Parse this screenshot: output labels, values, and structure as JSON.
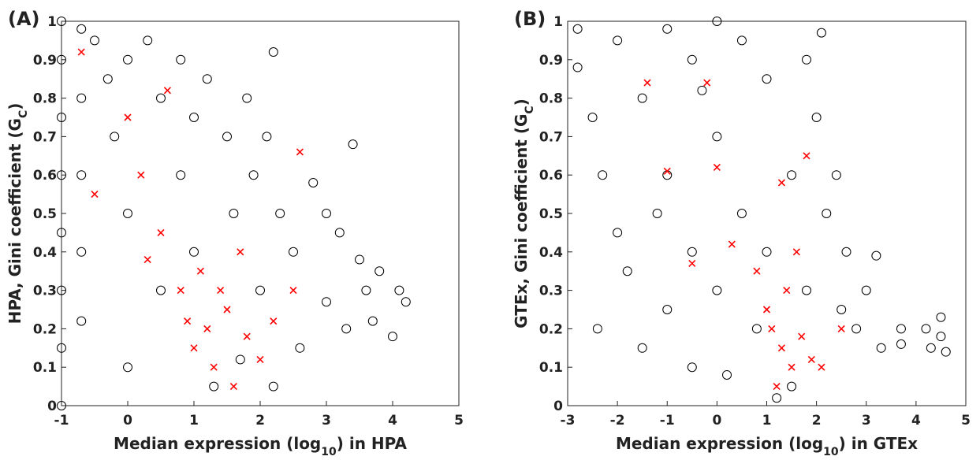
{
  "chart_data": [
    {
      "type": "scatter",
      "panel_label": "(A)",
      "xlabel": [
        "Median expression (log",
        "10",
        ") in HPA"
      ],
      "ylabel": [
        "HPA, Gini coefficient (G",
        "C",
        ")"
      ],
      "xlim": [
        -1,
        5
      ],
      "ylim": [
        0,
        1
      ],
      "xticks": [
        -1,
        0,
        1,
        2,
        3,
        4,
        5
      ],
      "yticks": [
        0,
        0.1,
        0.2,
        0.3,
        0.4,
        0.5,
        0.6,
        0.7,
        0.8,
        0.9,
        1
      ],
      "series": [
        {
          "color": "#000000",
          "marker": "circle",
          "x": [
            -1,
            -1,
            -1,
            -1,
            -1,
            -1,
            -1,
            -1,
            -0.7,
            -0.7,
            -0.7,
            -0.7,
            -0.7,
            -0.5,
            -0.3,
            -0.2,
            0,
            0,
            0,
            0.3,
            0.5,
            0.5,
            0.8,
            0.8,
            1,
            1,
            1.2,
            1.3,
            1.5,
            1.6,
            1.8,
            1.9,
            2,
            2.1,
            2.2,
            2.3,
            2.5,
            2.6,
            2.8,
            3,
            3,
            3.2,
            3.3,
            3.4,
            3.5,
            3.6,
            3.7,
            3.8,
            4,
            4.1,
            4.2,
            2.2,
            1.7
          ],
          "values": [
            1,
            0.9,
            0.75,
            0.6,
            0.45,
            0.3,
            0.15,
            0,
            0.98,
            0.8,
            0.6,
            0.4,
            0.22,
            0.95,
            0.85,
            0.7,
            0.9,
            0.5,
            0.1,
            0.95,
            0.8,
            0.3,
            0.9,
            0.6,
            0.75,
            0.4,
            0.85,
            0.05,
            0.7,
            0.5,
            0.8,
            0.6,
            0.3,
            0.7,
            0.92,
            0.5,
            0.4,
            0.15,
            0.58,
            0.5,
            0.27,
            0.45,
            0.2,
            0.68,
            0.38,
            0.3,
            0.22,
            0.35,
            0.18,
            0.3,
            0.27,
            0.05,
            0.12
          ]
        },
        {
          "color": "#ff0000",
          "marker": "cross",
          "x": [
            1.2,
            1,
            1.5,
            0.8,
            1.3,
            1.8,
            0.5,
            0.2,
            0,
            -0.7,
            -0.5,
            0.6,
            1.1,
            2,
            2.5,
            2.6,
            1.6,
            0.9,
            1.4,
            2.2,
            0.3,
            1.7
          ],
          "values": [
            0.2,
            0.15,
            0.25,
            0.3,
            0.1,
            0.18,
            0.45,
            0.6,
            0.75,
            0.92,
            0.55,
            0.82,
            0.35,
            0.12,
            0.3,
            0.66,
            0.05,
            0.22,
            0.3,
            0.22,
            0.38,
            0.4
          ]
        }
      ]
    },
    {
      "type": "scatter",
      "panel_label": "(B)",
      "xlabel": [
        "Median expression (log",
        "10",
        ") in GTEx"
      ],
      "ylabel": [
        "GTEx, Gini coefficient (G",
        "C",
        ")"
      ],
      "xlim": [
        -3,
        5
      ],
      "ylim": [
        0,
        1
      ],
      "xticks": [
        -3,
        -2,
        -1,
        0,
        1,
        2,
        3,
        4,
        5
      ],
      "yticks": [
        0,
        0.1,
        0.2,
        0.3,
        0.4,
        0.5,
        0.6,
        0.7,
        0.8,
        0.9,
        1
      ],
      "series": [
        {
          "color": "#000000",
          "marker": "circle",
          "x": [
            -2.8,
            -2.8,
            -2.5,
            -2.3,
            -2.4,
            -2,
            -2,
            -1.8,
            -1.5,
            -1.5,
            -1,
            -1,
            -1,
            -0.5,
            -0.5,
            -0.5,
            0,
            0,
            0,
            0.2,
            0.5,
            0.5,
            0.8,
            1,
            1,
            1.2,
            1.5,
            1.8,
            1.8,
            2,
            2.1,
            2.2,
            2.4,
            2.5,
            2.6,
            2.8,
            3,
            3.2,
            3.3,
            3.7,
            3.7,
            4.2,
            4.3,
            4.5,
            4.5,
            4.6,
            1.5,
            -0.3,
            -1.2
          ],
          "values": [
            0.98,
            0.88,
            0.75,
            0.6,
            0.2,
            0.45,
            0.95,
            0.35,
            0.15,
            0.8,
            0.98,
            0.6,
            0.25,
            0.9,
            0.4,
            0.1,
            1,
            0.7,
            0.3,
            0.08,
            0.95,
            0.5,
            0.2,
            0.85,
            0.4,
            0.02,
            0.6,
            0.9,
            0.3,
            0.75,
            0.97,
            0.5,
            0.6,
            0.25,
            0.4,
            0.2,
            0.3,
            0.39,
            0.15,
            0.2,
            0.16,
            0.2,
            0.15,
            0.23,
            0.18,
            0.14,
            0.05,
            0.82,
            0.5
          ]
        },
        {
          "color": "#ff0000",
          "marker": "cross",
          "x": [
            1.3,
            1.5,
            1.1,
            1.7,
            1.9,
            1,
            1.4,
            2.1,
            1.2,
            1.6,
            0.8,
            -1.4,
            -0.2,
            -1,
            0,
            0.3,
            -0.5,
            2.5,
            1.8,
            1.3
          ],
          "values": [
            0.15,
            0.1,
            0.2,
            0.18,
            0.12,
            0.25,
            0.3,
            0.1,
            0.05,
            0.4,
            0.35,
            0.84,
            0.84,
            0.61,
            0.62,
            0.42,
            0.37,
            0.2,
            0.65,
            0.58
          ]
        }
      ]
    }
  ]
}
